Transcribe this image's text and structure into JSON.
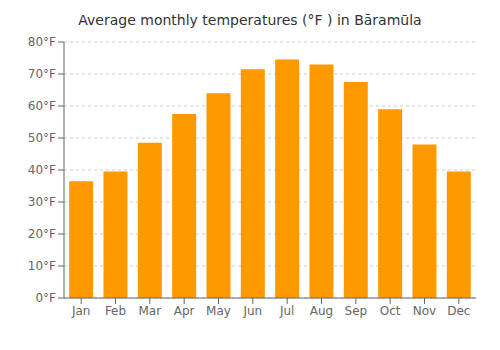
{
  "chart_data": {
    "type": "bar",
    "title": "Average monthly temperatures (°F ) in Bāramūla",
    "categories": [
      "Jan",
      "Feb",
      "Mar",
      "Apr",
      "May",
      "Jun",
      "Jul",
      "Aug",
      "Sep",
      "Oct",
      "Nov",
      "Dec"
    ],
    "values": [
      36.5,
      39.5,
      48.5,
      57.5,
      64.0,
      71.5,
      74.5,
      73.0,
      67.5,
      59.0,
      48.0,
      39.5
    ],
    "color": "#FF9900",
    "ylim": [
      0,
      80
    ],
    "yticks": [
      {
        "value": 0,
        "label": "0°F"
      },
      {
        "value": 10,
        "label": "10°F"
      },
      {
        "value": 20,
        "label": "20°F"
      },
      {
        "value": 30,
        "label": "30°F"
      },
      {
        "value": 40,
        "label": "40°F"
      },
      {
        "value": 50,
        "label": "50°F"
      },
      {
        "value": 60,
        "label": "60°F"
      },
      {
        "value": 70,
        "label": "70°F"
      },
      {
        "value": 80,
        "label": "80°F"
      }
    ],
    "grid": true
  }
}
